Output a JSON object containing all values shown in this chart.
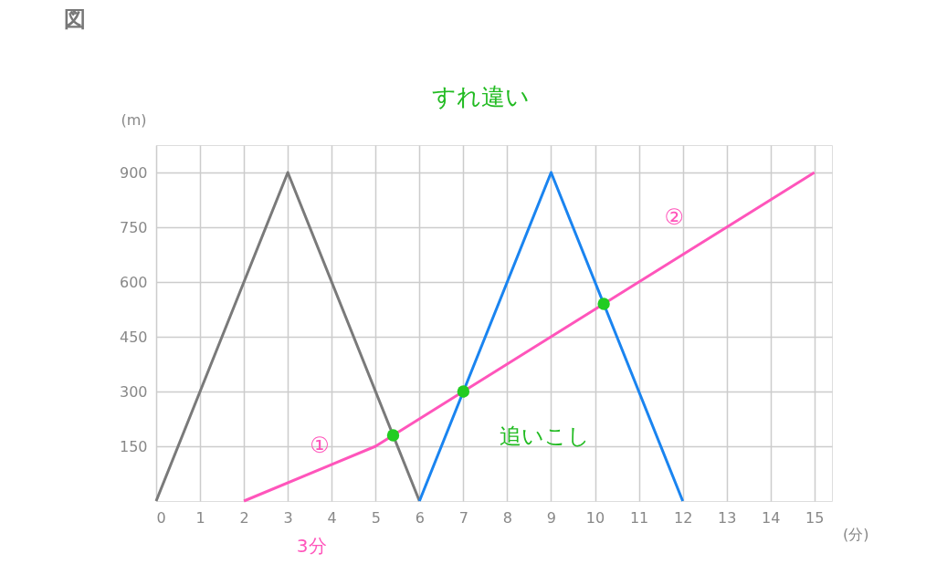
{
  "chart_data": {
    "type": "line",
    "title": "図",
    "xlabel": "(分)",
    "ylabel": "(m)",
    "xlim": [
      0,
      15.4
    ],
    "ylim": [
      0,
      975
    ],
    "xticks": [
      0,
      1,
      2,
      3,
      4,
      5,
      6,
      7,
      8,
      9,
      10,
      11,
      12,
      13,
      14,
      15
    ],
    "yticks": [
      150,
      300,
      450,
      600,
      750,
      900
    ],
    "grid": true,
    "marker": "none",
    "line_style": "solid",
    "series": [
      {
        "color": "#7a7a7a",
        "x": [
          0,
          3,
          6
        ],
        "values": [
          0,
          900,
          0
        ]
      },
      {
        "color": "#1a84f0",
        "x": [
          6,
          9,
          12
        ],
        "values": [
          0,
          900,
          0
        ]
      },
      {
        "color": "#ff55bb",
        "x": [
          2,
          5,
          15
        ],
        "values": [
          0,
          150,
          900
        ]
      },
      {
        "type": "scatter",
        "marker": "circle",
        "color": "#22cc22",
        "x": [
          5.4,
          7,
          10.2
        ],
        "values": [
          180,
          300,
          540
        ]
      }
    ],
    "annotations": [
      "すれ違い",
      {
        "text": "追いこし",
        "x": 7,
        "y": 300
      },
      {
        "text": "①",
        "x": 3.5,
        "y": 75
      },
      {
        "text": "②",
        "x": 12,
        "y": 675
      },
      "3分"
    ]
  }
}
